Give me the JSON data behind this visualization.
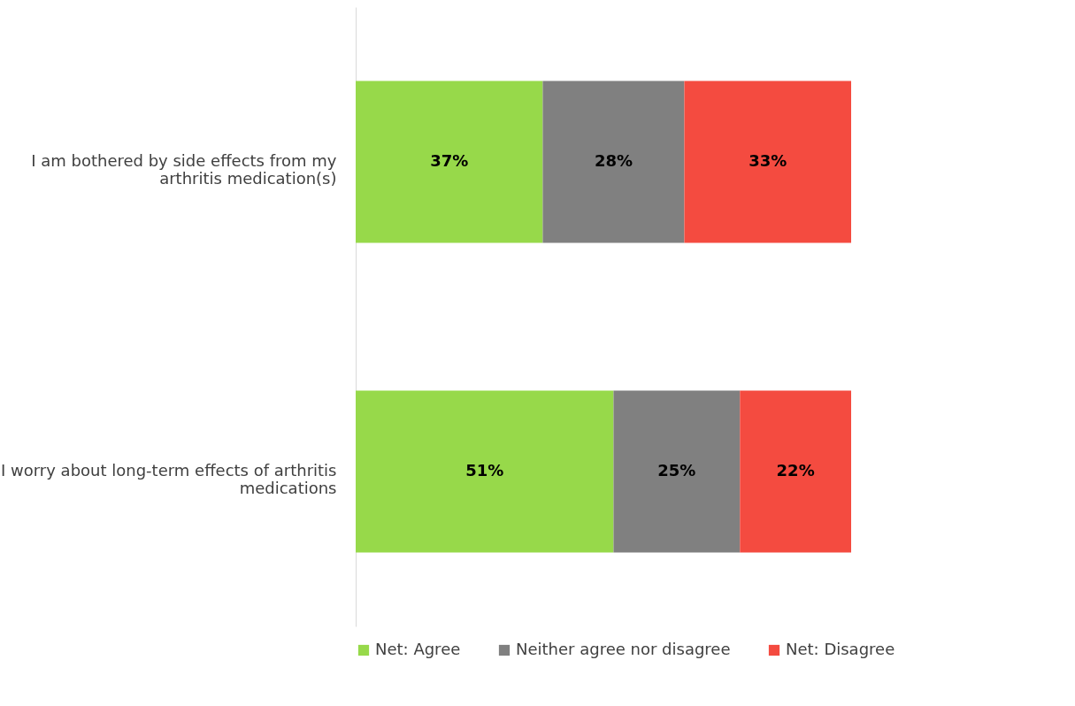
{
  "chart_data": {
    "type": "bar",
    "orientation": "horizontal",
    "stacked": true,
    "categories": [
      "I am bothered by side effects from my arthritis medication(s)",
      "I worry about long-term effects of arthritis medications"
    ],
    "series": [
      {
        "name": "Net: Agree",
        "color": "#97d94a",
        "values": [
          37,
          51
        ],
        "value_labels": [
          "37%",
          "51%"
        ]
      },
      {
        "name": "Neither agree nor disagree",
        "color": "#808080",
        "values": [
          28,
          25
        ],
        "value_labels": [
          "28%",
          "25%"
        ]
      },
      {
        "name": "Net: Disagree",
        "color": "#f44b40",
        "values": [
          33,
          22
        ],
        "value_labels": [
          "33%",
          "22%"
        ]
      }
    ],
    "legend": "bottom",
    "grid": false,
    "tick_labels": "y"
  }
}
